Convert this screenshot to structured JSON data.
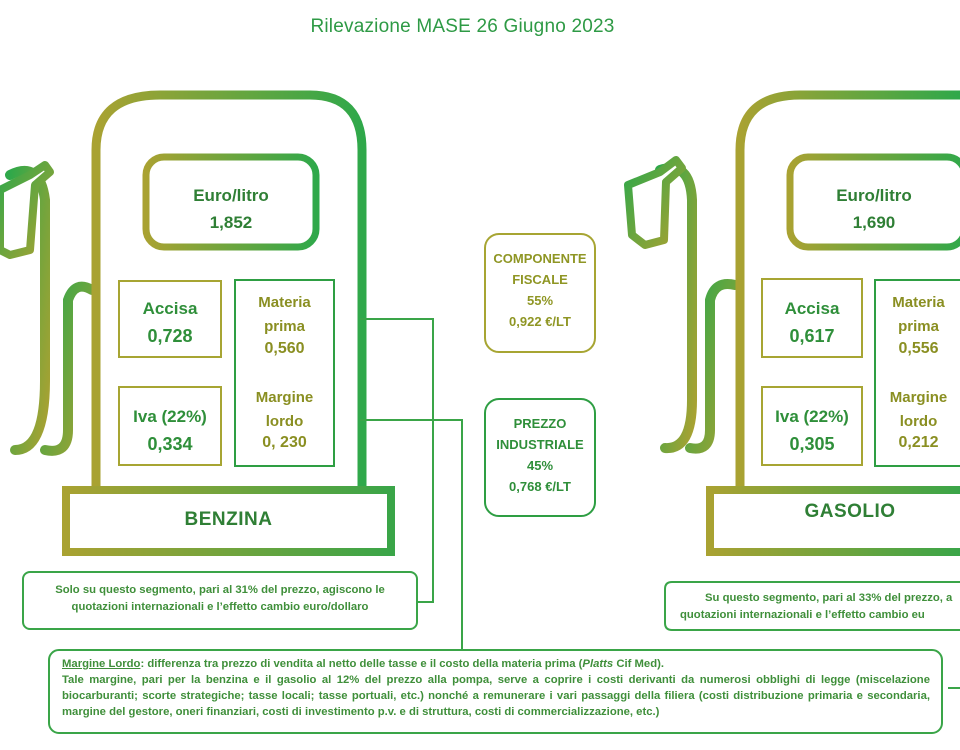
{
  "title": "Rilevazione MASE 26 Giugno 2023",
  "benzina": {
    "name": "BENZINA",
    "price_label": "Euro/litro",
    "price_value": "1,852",
    "accisa_label": "Accisa",
    "accisa_value": "0,728",
    "iva_label": "Iva (22%)",
    "iva_value": "0,334",
    "materia_label_1": "Materia",
    "materia_label_2": "prima",
    "materia_value": "0,560",
    "margine_label_1": "Margine",
    "margine_label_2": "lordo",
    "margine_value": "0, 230",
    "note_line_1": "Solo su questo segmento, pari al 31% del prezzo, agiscono le",
    "note_line_2": "quotazioni internazionali e l’effetto cambio euro/dollaro"
  },
  "gasolio": {
    "name": "GASOLIO",
    "price_label": "Euro/litro",
    "price_value": "1,690",
    "accisa_label": "Accisa",
    "accisa_value": "0,617",
    "iva_label": "Iva (22%)",
    "iva_value": "0,305",
    "materia_label_1": "Materia",
    "materia_label_2": "prima",
    "materia_value": "0,556",
    "margine_label_1": "Margine",
    "margine_label_2": "lordo",
    "margine_value": "0,212",
    "note_line_1": "Su questo segmento, pari al 33% del prezzo, a",
    "note_line_2": "quotazioni internazionali e l’effetto cambio eu"
  },
  "componente_fiscale": {
    "line_1": "COMPONENTE",
    "line_2": "FISCALE",
    "percent": "55%",
    "value": "0,922 €/LT"
  },
  "prezzo_industriale": {
    "line_1": "PREZZO",
    "line_2": "INDUSTRIALE",
    "percent": "45%",
    "value": "0,768 €/LT"
  },
  "footer": {
    "term": "Margine Lordo",
    "def_a": ": differenza tra prezzo di vendita al netto delle tasse e il costo della materia prima (",
    "def_italic": "Platts",
    "def_b": " Cif Med).",
    "body": "Tale margine, pari per la benzina e il gasolio al 12% del prezzo alla pompa, serve a coprire i costi derivanti da numerosi obblighi di legge (miscelazione biocarburanti; scorte strategiche; tasse locali; tasse portuali, etc.) nonché a remunerare i vari passaggi della filiera (costi distribuzione primaria e secondaria, margine del gestore, oneri finanziari, costi di investimento p.v. e di struttura, costi di commercializzazione, etc.)"
  },
  "colors": {
    "olive": "#a7a533",
    "green": "#2e9e43",
    "text_green": "#2f8f3a"
  }
}
